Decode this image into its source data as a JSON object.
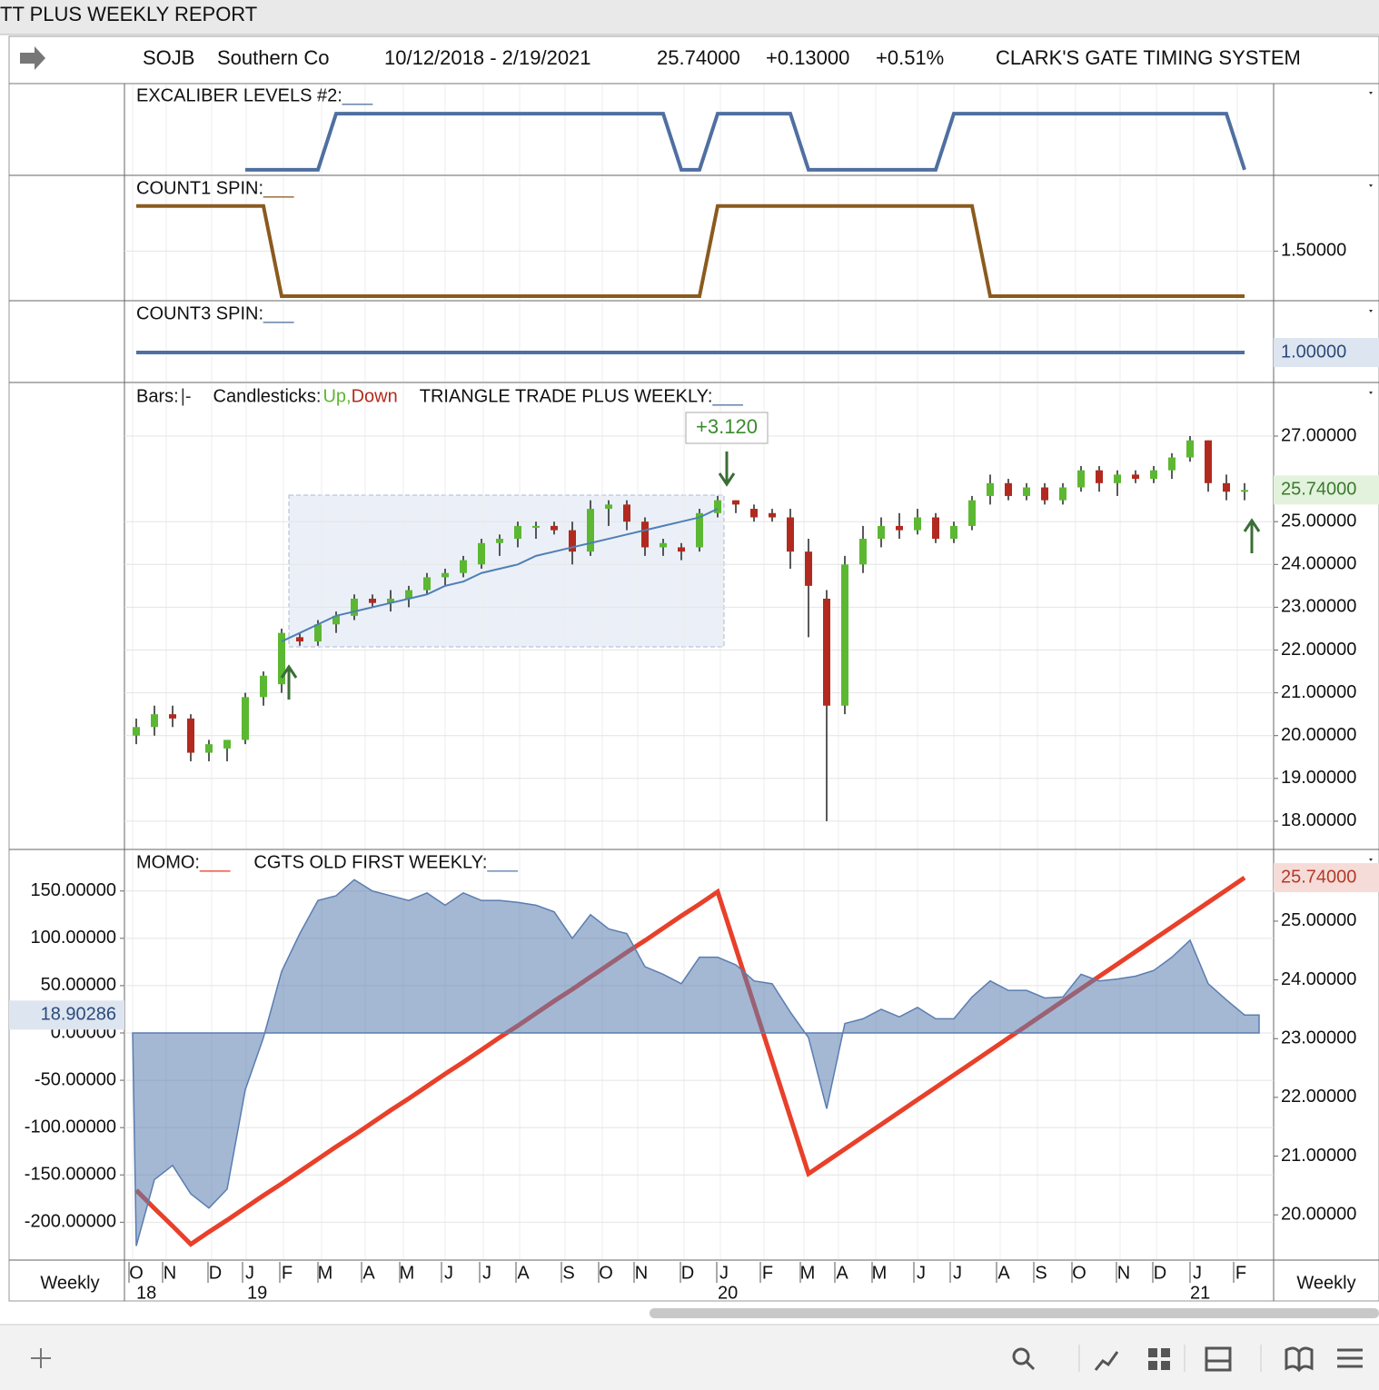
{
  "window_title": "TT PLUS WEEKLY REPORT",
  "header": {
    "symbol": "SOJB",
    "name": "Southern Co",
    "range": "10/12/2018 - 2/19/2021",
    "last": "25.74000",
    "change": "+0.13000",
    "change_pct": "+0.51%",
    "system": "CLARK'S GATE TIMING SYSTEM"
  },
  "chart_data": [
    {
      "type": "line",
      "title": "EXCALIBER LEVELS #2:",
      "marker": "___",
      "color": "#4f6fa0",
      "ylim": [
        -0.1,
        1.52
      ],
      "values": [
        null,
        null,
        null,
        null,
        null,
        null,
        0,
        0,
        0,
        0,
        0,
        1,
        1,
        1,
        1,
        1,
        1,
        1,
        1,
        1,
        1,
        1,
        1,
        1,
        1,
        1,
        1,
        1,
        1,
        1,
        0,
        0,
        1,
        1,
        1,
        1,
        1,
        0,
        0,
        0,
        0,
        0,
        0,
        0,
        0,
        1,
        1,
        1,
        1,
        1,
        1,
        1,
        1,
        1,
        1,
        1,
        1,
        1,
        1,
        1,
        1,
        0
      ]
    },
    {
      "type": "line",
      "title": "COUNT1 SPIN:",
      "marker": "___",
      "color": "#8b5a1e",
      "ylim": [
        0.95,
        2.32
      ],
      "yticks": [
        {
          "value": 1.5,
          "label": "1.50000"
        }
      ],
      "values": [
        2,
        2,
        2,
        2,
        2,
        2,
        2,
        2,
        1,
        1,
        1,
        1,
        1,
        1,
        1,
        1,
        1,
        1,
        1,
        1,
        1,
        1,
        1,
        1,
        1,
        1,
        1,
        1,
        1,
        1,
        1,
        1,
        2,
        2,
        2,
        2,
        2,
        2,
        2,
        2,
        2,
        2,
        2,
        2,
        2,
        2,
        2,
        1,
        1,
        1,
        1,
        1,
        1,
        1,
        1,
        1,
        1,
        1,
        1,
        1,
        1,
        1
      ]
    },
    {
      "type": "line",
      "title": "COUNT3 SPIN:",
      "marker": "___",
      "color": "#4f6fa0",
      "ylim": [
        0.5,
        1.833
      ],
      "current": {
        "value": 1,
        "label": "1.00000"
      },
      "values": [
        1,
        1,
        1,
        1,
        1,
        1,
        1,
        1,
        1,
        1,
        1,
        1,
        1,
        1,
        1,
        1,
        1,
        1,
        1,
        1,
        1,
        1,
        1,
        1,
        1,
        1,
        1,
        1,
        1,
        1,
        1,
        1,
        1,
        1,
        1,
        1,
        1,
        1,
        1,
        1,
        1,
        1,
        1,
        1,
        1,
        1,
        1,
        1,
        1,
        1,
        1,
        1,
        1,
        1,
        1,
        1,
        1,
        1,
        1,
        1,
        1,
        1
      ]
    },
    {
      "type": "candlestick",
      "bars_label": "Bars:",
      "bars_marker": "|-",
      "candles_label": "Candlesticks:",
      "up_label": "Up,",
      "down_label": "Down",
      "up_color": "#5cb832",
      "down_color": "#b22a1f",
      "title": "TRIANGLE TRADE PLUS WEEKLY:",
      "marker": "___",
      "annotation": "+3.120",
      "ylim": [
        17.34,
        28.21
      ],
      "yticks": [
        {
          "value": 27,
          "label": "27.00000"
        },
        {
          "value": 25,
          "label": "25.00000"
        },
        {
          "value": 24,
          "label": "24.00000"
        },
        {
          "value": 23,
          "label": "23.00000"
        },
        {
          "value": 22,
          "label": "22.00000"
        },
        {
          "value": 21,
          "label": "21.00000"
        },
        {
          "value": 20,
          "label": "20.00000"
        },
        {
          "value": 19,
          "label": "19.00000"
        },
        {
          "value": 18,
          "label": "18.00000"
        }
      ],
      "current": {
        "value": 25.74,
        "label": "25.74000"
      },
      "candles": [
        [
          20.0,
          20.4,
          19.8,
          20.2
        ],
        [
          20.2,
          20.7,
          20.0,
          20.5
        ],
        [
          20.5,
          20.7,
          20.2,
          20.4
        ],
        [
          20.4,
          20.5,
          19.4,
          19.6
        ],
        [
          19.6,
          19.9,
          19.4,
          19.8
        ],
        [
          19.7,
          19.9,
          19.4,
          19.9
        ],
        [
          19.9,
          21.0,
          19.8,
          20.9
        ],
        [
          20.9,
          21.5,
          20.7,
          21.4
        ],
        [
          21.2,
          22.5,
          21.0,
          22.4
        ],
        [
          22.3,
          22.4,
          22.1,
          22.2
        ],
        [
          22.2,
          22.7,
          22.1,
          22.6
        ],
        [
          22.6,
          22.9,
          22.4,
          22.8
        ],
        [
          22.8,
          23.3,
          22.7,
          23.2
        ],
        [
          23.2,
          23.3,
          23.0,
          23.1
        ],
        [
          23.1,
          23.4,
          22.9,
          23.2
        ],
        [
          23.2,
          23.5,
          23.0,
          23.4
        ],
        [
          23.4,
          23.8,
          23.3,
          23.7
        ],
        [
          23.7,
          23.9,
          23.5,
          23.8
        ],
        [
          23.8,
          24.2,
          23.7,
          24.1
        ],
        [
          24.0,
          24.6,
          23.9,
          24.5
        ],
        [
          24.5,
          24.7,
          24.2,
          24.6
        ],
        [
          24.6,
          25.0,
          24.4,
          24.9
        ],
        [
          24.9,
          25.0,
          24.6,
          24.9
        ],
        [
          24.9,
          25.0,
          24.7,
          24.8
        ],
        [
          24.8,
          25.0,
          24.0,
          24.3
        ],
        [
          24.3,
          25.5,
          24.2,
          25.3
        ],
        [
          25.3,
          25.5,
          24.9,
          25.4
        ],
        [
          25.4,
          25.5,
          24.8,
          25.0
        ],
        [
          25.0,
          25.1,
          24.2,
          24.4
        ],
        [
          24.4,
          24.6,
          24.2,
          24.5
        ],
        [
          24.4,
          24.5,
          24.1,
          24.3
        ],
        [
          24.4,
          25.3,
          24.3,
          25.2
        ],
        [
          25.2,
          25.6,
          25.1,
          25.5
        ],
        [
          25.5,
          25.5,
          25.2,
          25.4
        ],
        [
          25.3,
          25.4,
          25.0,
          25.1
        ],
        [
          25.2,
          25.3,
          25.0,
          25.1
        ],
        [
          25.1,
          25.3,
          23.9,
          24.3
        ],
        [
          24.3,
          24.6,
          22.3,
          23.5
        ],
        [
          23.2,
          23.4,
          18.0,
          20.7
        ],
        [
          20.7,
          24.2,
          20.5,
          24.0
        ],
        [
          24.0,
          24.9,
          23.8,
          24.6
        ],
        [
          24.6,
          25.1,
          24.4,
          24.9
        ],
        [
          24.9,
          25.2,
          24.6,
          24.8
        ],
        [
          24.8,
          25.3,
          24.7,
          25.1
        ],
        [
          25.1,
          25.2,
          24.5,
          24.6
        ],
        [
          24.6,
          25.0,
          24.5,
          24.9
        ],
        [
          24.9,
          25.6,
          24.8,
          25.5
        ],
        [
          25.6,
          26.1,
          25.4,
          25.9
        ],
        [
          25.9,
          26.0,
          25.5,
          25.6
        ],
        [
          25.6,
          25.9,
          25.5,
          25.8
        ],
        [
          25.8,
          25.9,
          25.4,
          25.5
        ],
        [
          25.5,
          25.9,
          25.4,
          25.8
        ],
        [
          25.8,
          26.3,
          25.7,
          26.2
        ],
        [
          26.2,
          26.3,
          25.7,
          25.9
        ],
        [
          25.9,
          26.2,
          25.6,
          26.1
        ],
        [
          26.1,
          26.2,
          25.9,
          26.0
        ],
        [
          26.0,
          26.3,
          25.9,
          26.2
        ],
        [
          26.2,
          26.6,
          26.0,
          26.5
        ],
        [
          26.5,
          27.0,
          26.4,
          26.9
        ],
        [
          26.9,
          26.9,
          25.7,
          25.9
        ],
        [
          25.9,
          26.1,
          25.5,
          25.7
        ],
        [
          25.7,
          25.9,
          25.5,
          25.74
        ]
      ],
      "ma": {
        "color": "#4f7fb5",
        "values": [
          null,
          null,
          null,
          null,
          null,
          null,
          null,
          null,
          22.2,
          22.4,
          22.6,
          22.8,
          22.9,
          23.0,
          23.1,
          23.2,
          23.3,
          23.5,
          23.6,
          23.8,
          23.9,
          24.0,
          24.2,
          24.3,
          24.4,
          24.5,
          24.6,
          24.7,
          24.8,
          24.9,
          25.0,
          25.1,
          25.3,
          null,
          null,
          null,
          null,
          null,
          null,
          null,
          null,
          null,
          null,
          null,
          null,
          null,
          null,
          null,
          null,
          null,
          null,
          null,
          null,
          null,
          null,
          null,
          null,
          null,
          null,
          null,
          null,
          null
        ]
      }
    },
    {
      "type": "area",
      "ylim": [
        -240,
        192
      ],
      "y2lim": [
        19.23,
        26.19
      ],
      "yticks": [
        {
          "value": 150,
          "label": "150.00000"
        },
        {
          "value": 100,
          "label": "100.00000"
        },
        {
          "value": 50,
          "label": "50.00000"
        },
        {
          "value": 0,
          "label": "0.00000"
        },
        {
          "value": -50,
          "label": "-50.00000"
        },
        {
          "value": -100,
          "label": "-100.00000"
        },
        {
          "value": -150,
          "label": "-150.00000"
        },
        {
          "value": -200,
          "label": "-200.00000"
        }
      ],
      "y2ticks": [
        {
          "value": 25,
          "label": "25.00000"
        },
        {
          "value": 24,
          "label": "24.00000"
        },
        {
          "value": 23,
          "label": "23.00000"
        },
        {
          "value": 22,
          "label": "22.00000"
        },
        {
          "value": 21,
          "label": "21.00000"
        },
        {
          "value": 20,
          "label": "20.00000"
        }
      ],
      "series": [
        {
          "name": "MOMO:",
          "marker": "___",
          "color": "#e8402a",
          "axis": "y2",
          "current": {
            "value": 25.74,
            "label": "25.74000"
          },
          "values": [
            20.42,
            20.11,
            19.81,
            19.5,
            19.71,
            19.91,
            20.12,
            20.33,
            20.53,
            20.74,
            20.95,
            21.16,
            21.36,
            21.57,
            21.78,
            21.98,
            22.19,
            22.4,
            22.6,
            22.81,
            23.02,
            23.22,
            23.43,
            23.64,
            23.84,
            24.05,
            24.26,
            24.47,
            24.67,
            24.88,
            25.09,
            25.29,
            25.5,
            24.54,
            23.58,
            22.62,
            21.66,
            20.7,
            20.91,
            21.12,
            21.33,
            21.54,
            21.75,
            21.96,
            22.17,
            22.38,
            22.59,
            22.8,
            23.01,
            23.22,
            23.43,
            23.64,
            23.85,
            24.06,
            24.27,
            24.48,
            24.69,
            24.9,
            25.11,
            25.32,
            25.53,
            25.74
          ]
        },
        {
          "name": "CGTS OLD FIRST WEEKLY:",
          "marker": "___",
          "color": "#5a7db0",
          "current": {
            "value": 18.90286
          },
          "values": [
            -225,
            -155,
            -140,
            -170,
            -185,
            -165,
            -60,
            -5,
            65,
            105,
            140,
            145,
            162,
            150,
            145,
            140,
            148,
            135,
            148,
            140,
            140,
            138,
            135,
            128,
            100,
            125,
            110,
            105,
            70,
            62,
            52,
            80,
            80,
            72,
            55,
            52,
            22,
            -5,
            -80,
            10,
            15,
            25,
            17,
            27,
            15,
            15,
            38,
            55,
            45,
            45,
            37,
            38,
            62,
            55,
            57,
            60,
            66,
            80,
            98,
            52,
            35,
            19
          ]
        }
      ]
    }
  ],
  "x_axis": {
    "label": "Weekly",
    "months": [
      "O",
      "N",
      "D",
      "J",
      "F",
      "M",
      "A",
      "M",
      "J",
      "J",
      "A",
      "S",
      "O",
      "N",
      "D",
      "J",
      "F",
      "M",
      "A",
      "M",
      "J",
      "J",
      "A",
      "S",
      "O",
      "N",
      "D",
      "J",
      "F"
    ],
    "years": [
      "18",
      "19",
      "20",
      "21"
    ]
  }
}
